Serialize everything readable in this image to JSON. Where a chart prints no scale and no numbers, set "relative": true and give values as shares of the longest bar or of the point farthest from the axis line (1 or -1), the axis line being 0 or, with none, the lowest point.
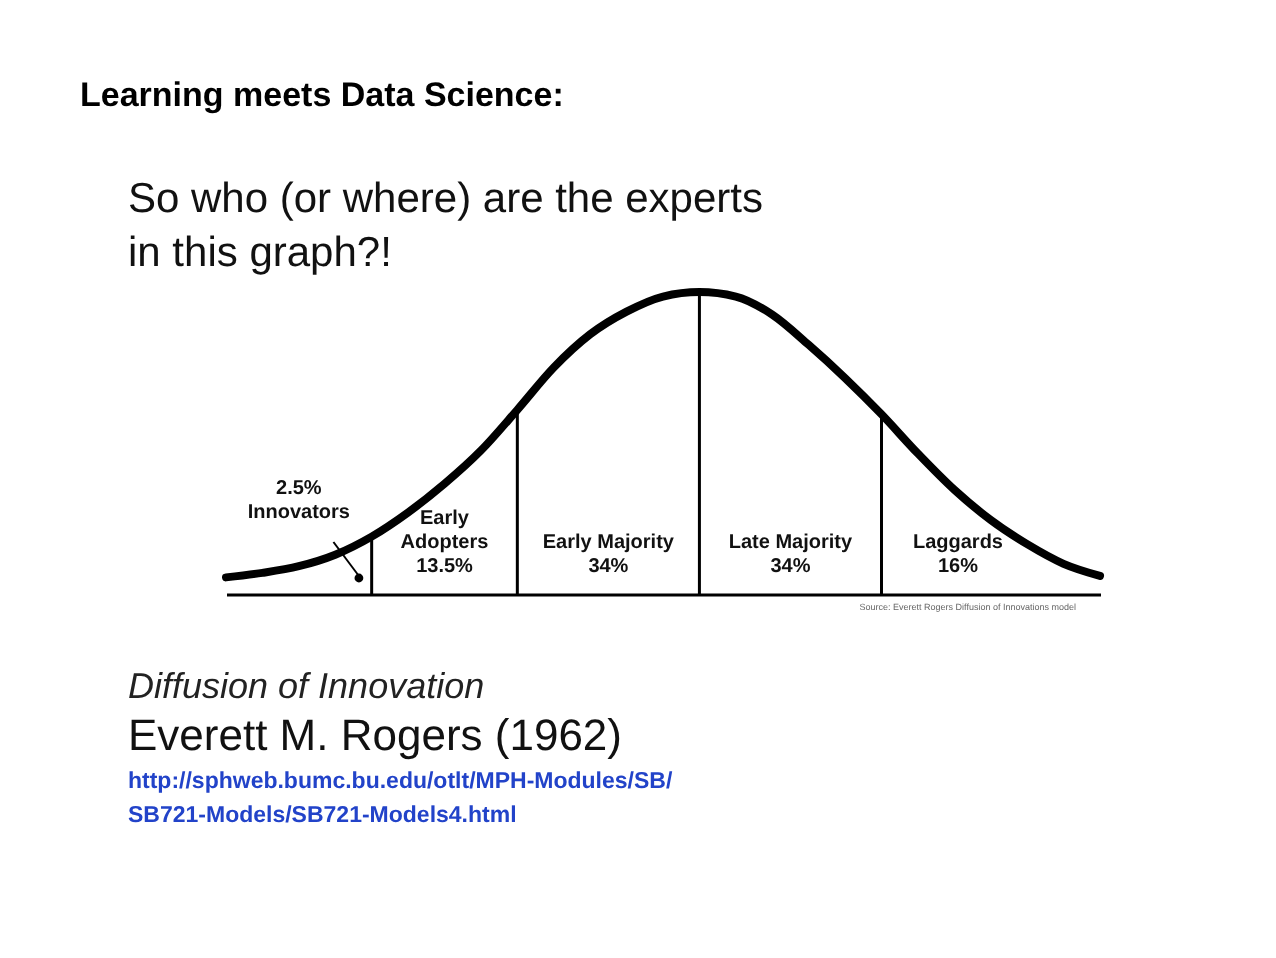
{
  "chart_data": {
    "type": "line",
    "title": "Learning meets Data Science:",
    "subtitle": "So who (or where) are the experts\nin this graph?!",
    "relative": true,
    "categories": [
      null,
      null,
      null,
      null,
      null,
      null,
      null,
      null,
      null,
      null,
      null,
      null,
      null,
      null,
      null,
      null,
      null,
      null,
      null,
      null,
      null,
      null,
      null,
      null,
      null
    ],
    "series": [
      {
        "color": "#000000",
        "values": [
          0.055,
          0.07,
          0.092,
          0.13,
          0.19,
          0.27,
          0.365,
          0.475,
          0.61,
          0.75,
          0.86,
          0.935,
          0.985,
          1.0,
          0.985,
          0.925,
          0.825,
          0.715,
          0.595,
          0.465,
          0.345,
          0.245,
          0.165,
          0.1,
          0.06
        ]
      }
    ],
    "annotations": [
      "2.5%\nInnovators",
      "Early\nAdopters\n13.5%",
      "Early Majority\n34%",
      "Late Majority\n34%",
      "Laggards\n16%",
      "Source: Everett Rogers Diffusion of Innovations model",
      "Diffusion of Innovation",
      "Everett M. Rogers (1962)",
      "http://sphweb.bumc.bu.edu/otlt/MPH-Modules/SB/\nSB721-Models/SB721-Models4.html"
    ]
  }
}
